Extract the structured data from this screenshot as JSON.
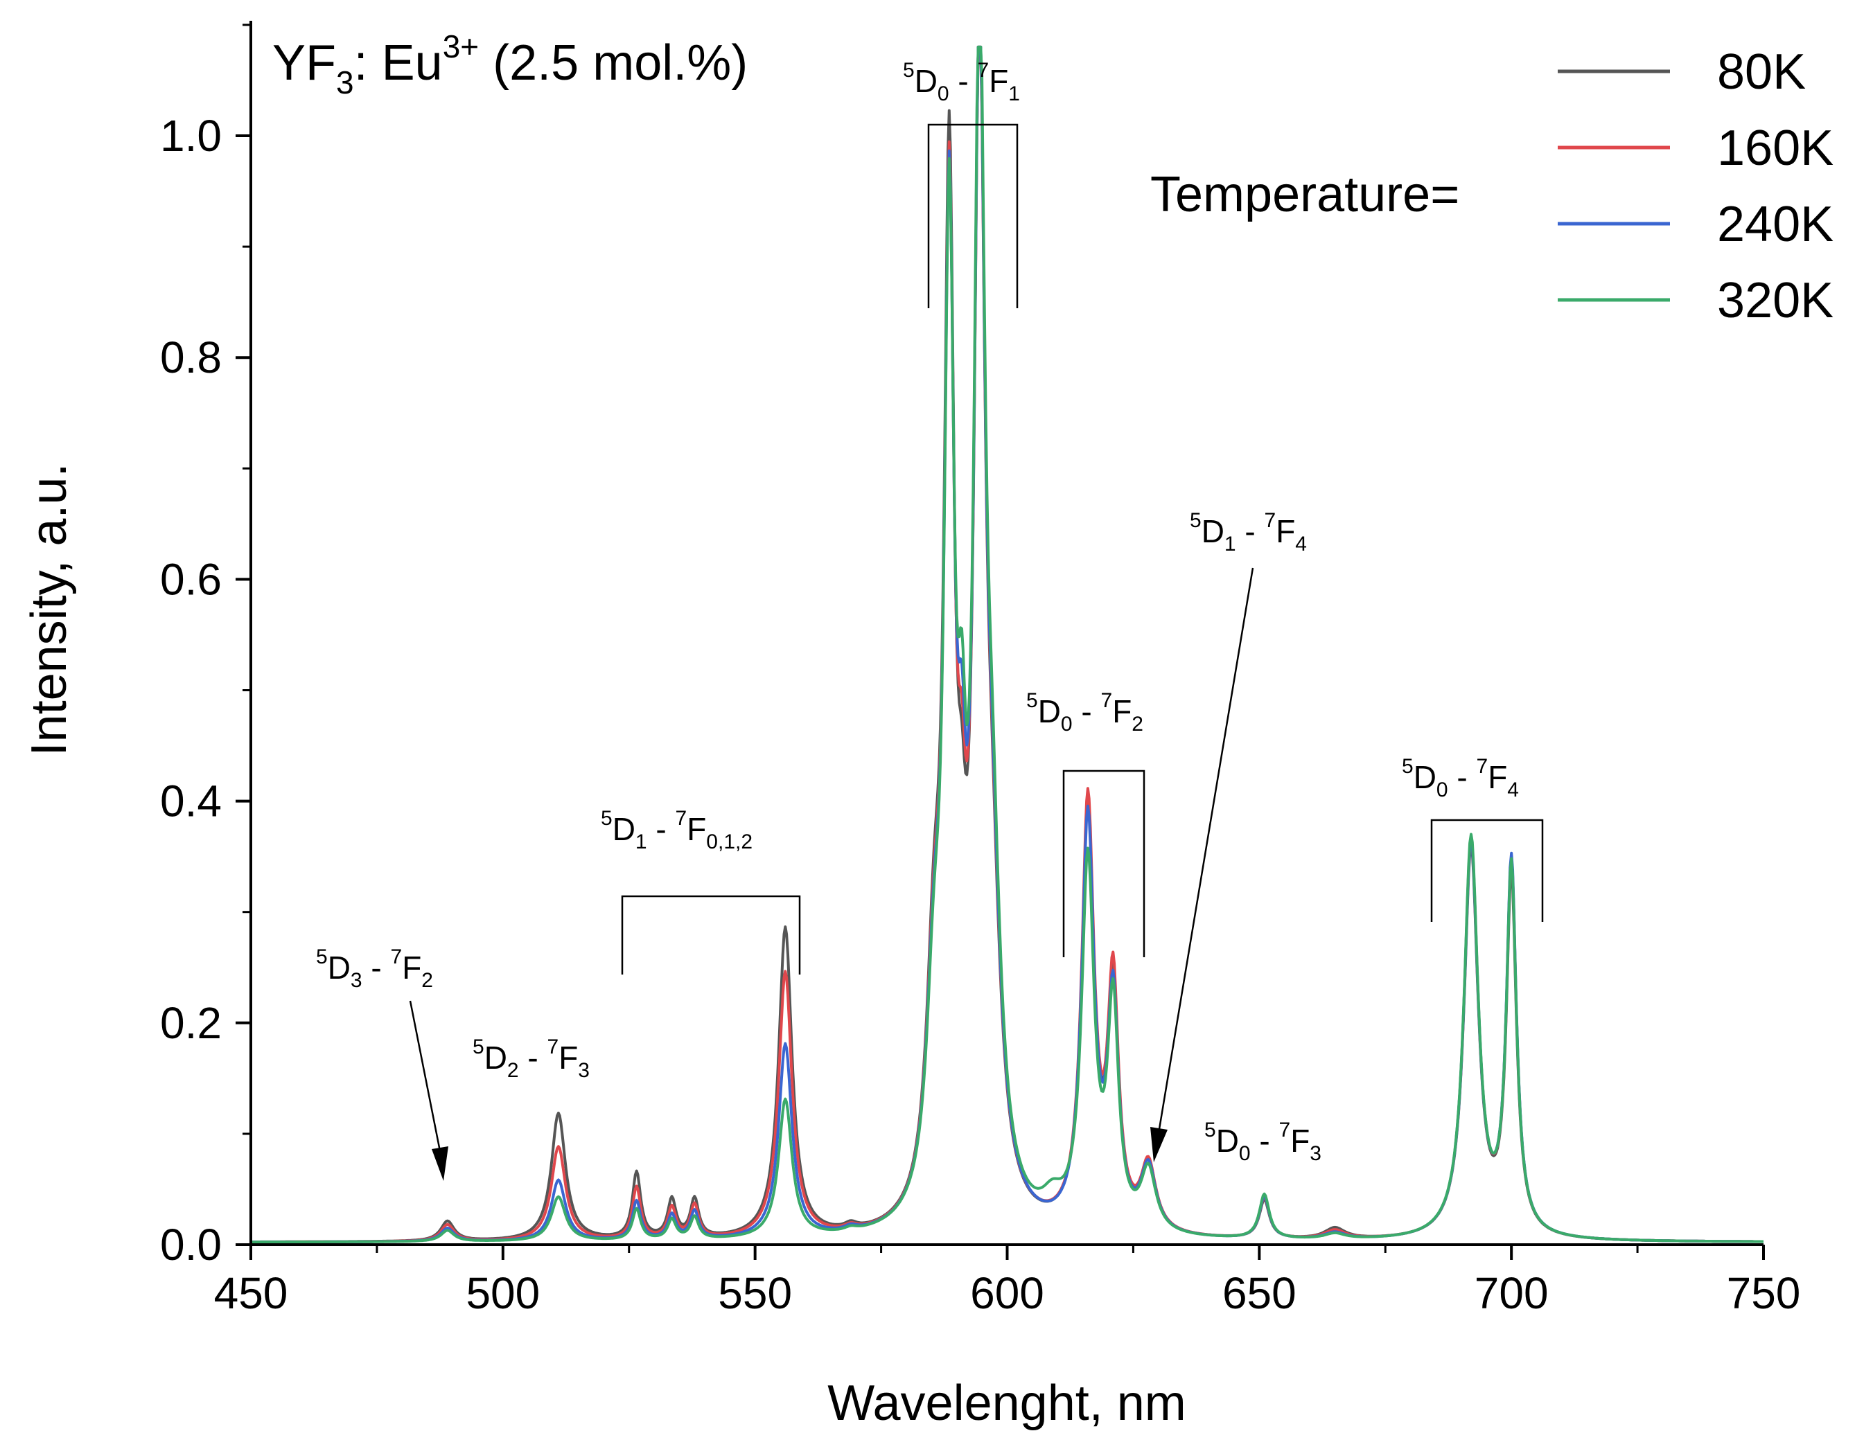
{
  "chart_data": {
    "type": "line",
    "title": "YF3: Eu3+ (2.5 mol.%)",
    "title_parts": {
      "host": "YF",
      "host_sub": "3",
      "dopant": ": Eu",
      "dopant_sup": "3+",
      "conc": " (2.5 mol.%)"
    },
    "xlabel": "Wavelenght, nm",
    "ylabel": "Intensity, a.u.",
    "xlim": [
      450,
      750
    ],
    "ylim": [
      0,
      1.08
    ],
    "xticks": [
      450,
      500,
      550,
      600,
      650,
      700,
      750
    ],
    "xtick_labels": [
      "450",
      "500",
      "550",
      "600",
      "650",
      "700",
      "750"
    ],
    "yticks": [
      0,
      0.2,
      0.4,
      0.6,
      0.8,
      1.0
    ],
    "ytick_labels": [
      "0.0",
      "0.2",
      "0.4",
      "0.6",
      "0.8",
      "1.0"
    ],
    "legend": {
      "title": "Temperature=",
      "position": "top-right",
      "entries": [
        "80K",
        "160K",
        "240K",
        "320K"
      ]
    },
    "series": [
      {
        "name": "80K",
        "color": "#555555",
        "peaks": [
          [
            489,
            0.018,
            1.6
          ],
          [
            511,
            0.115,
            1.7
          ],
          [
            526.5,
            0.06,
            1.0
          ],
          [
            533.5,
            0.035,
            1.0
          ],
          [
            538,
            0.035,
            1.0
          ],
          [
            556,
            0.28,
            1.6
          ],
          [
            569,
            0.005,
            1.5
          ],
          [
            585.5,
            0.2,
            1.8
          ],
          [
            588.5,
            0.89,
            1.2
          ],
          [
            591,
            0.14,
            1.0
          ],
          [
            594.5,
            0.99,
            1.3
          ],
          [
            597,
            0.22,
            2.0
          ],
          [
            616,
            0.375,
            1.5
          ],
          [
            621,
            0.21,
            1.3
          ],
          [
            628,
            0.06,
            1.8
          ],
          [
            651,
            0.035,
            1.2
          ],
          [
            665,
            0.01,
            2.5
          ],
          [
            692,
            0.35,
            1.7
          ],
          [
            700,
            0.32,
            1.2
          ]
        ]
      },
      {
        "name": "160K",
        "color": "#e0474c",
        "peaks": [
          [
            489,
            0.015,
            1.6
          ],
          [
            511,
            0.085,
            1.7
          ],
          [
            526.5,
            0.047,
            1.0
          ],
          [
            533.5,
            0.028,
            1.0
          ],
          [
            538,
            0.03,
            1.0
          ],
          [
            556,
            0.24,
            1.6
          ],
          [
            569,
            0.004,
            1.5
          ],
          [
            585.5,
            0.19,
            1.8
          ],
          [
            588.5,
            0.86,
            1.2
          ],
          [
            591,
            0.17,
            1.0
          ],
          [
            594.5,
            0.99,
            1.3
          ],
          [
            597,
            0.23,
            2.0
          ],
          [
            616,
            0.385,
            1.5
          ],
          [
            621,
            0.22,
            1.3
          ],
          [
            628,
            0.06,
            1.8
          ],
          [
            651,
            0.037,
            1.2
          ],
          [
            665,
            0.008,
            2.5
          ],
          [
            692,
            0.355,
            1.7
          ],
          [
            700,
            0.33,
            1.2
          ]
        ]
      },
      {
        "name": "240K",
        "color": "#3a66d1",
        "peaks": [
          [
            489,
            0.012,
            1.6
          ],
          [
            511,
            0.055,
            1.7
          ],
          [
            526.5,
            0.035,
            1.0
          ],
          [
            533.5,
            0.022,
            1.0
          ],
          [
            538,
            0.025,
            1.0
          ],
          [
            556,
            0.175,
            1.6
          ],
          [
            569,
            0.004,
            1.5
          ],
          [
            585.5,
            0.18,
            1.8
          ],
          [
            588.5,
            0.85,
            1.2
          ],
          [
            591,
            0.2,
            1.0
          ],
          [
            594.5,
            0.99,
            1.3
          ],
          [
            597,
            0.24,
            2.0
          ],
          [
            616,
            0.37,
            1.5
          ],
          [
            621,
            0.205,
            1.3
          ],
          [
            628,
            0.058,
            1.8
          ],
          [
            651,
            0.038,
            1.2
          ],
          [
            665,
            0.006,
            2.5
          ],
          [
            692,
            0.355,
            1.7
          ],
          [
            700,
            0.335,
            1.2
          ]
        ]
      },
      {
        "name": "320K",
        "color": "#3aaa6a",
        "peaks": [
          [
            489,
            0.01,
            1.6
          ],
          [
            511,
            0.04,
            1.7
          ],
          [
            526.5,
            0.028,
            1.0
          ],
          [
            533.5,
            0.018,
            1.0
          ],
          [
            538,
            0.02,
            1.0
          ],
          [
            556,
            0.125,
            1.6
          ],
          [
            569,
            0.003,
            1.5
          ],
          [
            585.5,
            0.17,
            1.8
          ],
          [
            588.5,
            0.84,
            1.2
          ],
          [
            591,
            0.23,
            1.0
          ],
          [
            594.5,
            1.0,
            1.3
          ],
          [
            597,
            0.26,
            2.0
          ],
          [
            609,
            0.02,
            2.5
          ],
          [
            616,
            0.33,
            1.5
          ],
          [
            621,
            0.2,
            1.3
          ],
          [
            628,
            0.055,
            1.8
          ],
          [
            651,
            0.04,
            1.2
          ],
          [
            665,
            0.005,
            2.5
          ],
          [
            692,
            0.36,
            1.7
          ],
          [
            700,
            0.33,
            1.2
          ]
        ]
      }
    ],
    "annotations": [
      {
        "level1": "5",
        "state1": "D",
        "sub1": "3",
        "level2": "7",
        "state2": "F",
        "sub2": "2"
      },
      {
        "level1": "5",
        "state1": "D",
        "sub1": "2",
        "level2": "7",
        "state2": "F",
        "sub2": "3"
      },
      {
        "level1": "5",
        "state1": "D",
        "sub1": "1",
        "level2": "7",
        "state2": "F",
        "sub2": "0,1,2"
      },
      {
        "level1": "5",
        "state1": "D",
        "sub1": "0",
        "level2": "7",
        "state2": "F",
        "sub2": "1"
      },
      {
        "level1": "5",
        "state1": "D",
        "sub1": "0",
        "level2": "7",
        "state2": "F",
        "sub2": "2"
      },
      {
        "level1": "5",
        "state1": "D",
        "sub1": "1",
        "level2": "7",
        "state2": "F",
        "sub2": "4"
      },
      {
        "level1": "5",
        "state1": "D",
        "sub1": "0",
        "level2": "7",
        "state2": "F",
        "sub2": "3"
      },
      {
        "level1": "5",
        "state1": "D",
        "sub1": "0",
        "level2": "7",
        "state2": "F",
        "sub2": "4"
      }
    ]
  }
}
